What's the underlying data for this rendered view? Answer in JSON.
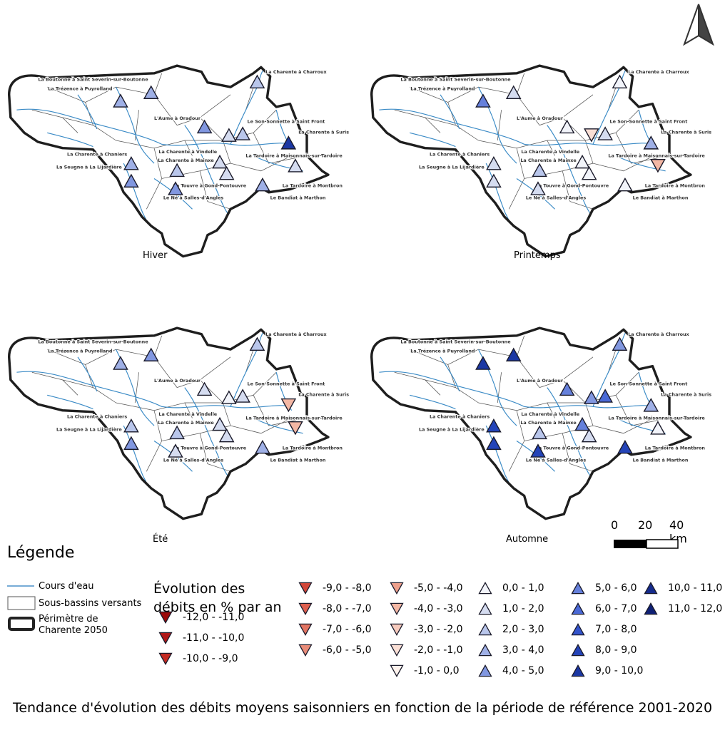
{
  "seasons": [
    "Hiver",
    "Printemps",
    "Été",
    "Automne"
  ],
  "stations": [
    "La Boutonne à Saint Severin-sur-Boutonne",
    "La Trézence à Puyrolland",
    "La Charente à Charroux",
    "L'Aume à Oradour",
    "Le Son-Sonnette à Saint Front",
    "La Charente à Suris",
    "La Charente à Chaniers",
    "La Charente à Vindelle",
    "La Tardoire à Maisonnais-sur-Tardoire",
    "La Charente à Mainxe",
    "La Seugne à La Lijardière",
    "La Touvre à Gond-Pontouvre",
    "La Tardoire à Montbron",
    "Le Né à Salles-d'Angles",
    "Le Bandiat à Marthon"
  ],
  "map_symbols": {
    "Hiver": [
      4,
      4,
      3,
      5,
      2,
      10,
      4,
      2,
      3,
      3,
      5,
      2,
      2,
      5,
      4
    ],
    "Printemps": [
      6,
      2,
      1,
      1,
      -1,
      4,
      2,
      1,
      2,
      3,
      2,
      1,
      -3,
      2,
      1
    ],
    "Été": [
      4,
      5,
      3,
      2,
      1,
      -3,
      3,
      2,
      2,
      3,
      5,
      2,
      -3,
      2,
      4
    ],
    "Automne": [
      10,
      10,
      5,
      6,
      5,
      4,
      9,
      6,
      7,
      3,
      9,
      2,
      1,
      9,
      9
    ]
  },
  "scale_bar": {
    "labels": [
      "0",
      "20",
      "40 km"
    ]
  },
  "legend": {
    "title": "Légende",
    "rivers": "Cours d'eau",
    "subbasins": "Sous-bassins versants",
    "perimeter": "Périmètre de\nCharente 2050",
    "evolution_title": "Évolution des débits en % par an",
    "classes": [
      {
        "label": "-12,0 - -11,0",
        "color": "#9b0a0a",
        "dir": "down"
      },
      {
        "label": "-11,0 - -10,0",
        "color": "#b01818",
        "dir": "down"
      },
      {
        "label": "-10,0 - -9,0",
        "color": "#c42a22",
        "dir": "down"
      },
      {
        "label": "-9,0 - -8,0",
        "color": "#d2473a",
        "dir": "down"
      },
      {
        "label": "-8,0 - -7,0",
        "color": "#dd5e4e",
        "dir": "down"
      },
      {
        "label": "-7,0 - -6,0",
        "color": "#e27462",
        "dir": "down"
      },
      {
        "label": "-6,0 - -5,0",
        "color": "#e88b78",
        "dir": "down"
      },
      {
        "label": "-5,0 - -4,0",
        "color": "#eea08c",
        "dir": "down"
      },
      {
        "label": "-4,0 - -3,0",
        "color": "#f3b7a4",
        "dir": "down"
      },
      {
        "label": "-3,0 - -2,0",
        "color": "#f7cbbd",
        "dir": "down"
      },
      {
        "label": "-2,0 - -1,0",
        "color": "#fadfd5",
        "dir": "down"
      },
      {
        "label": "-1,0 - 0,0",
        "color": "#fdf2ec",
        "dir": "down"
      },
      {
        "label": "0,0 - 1,0",
        "color": "#f2f4fa",
        "dir": "up"
      },
      {
        "label": "1,0 - 2,0",
        "color": "#d5dcf0",
        "dir": "up"
      },
      {
        "label": "2,0 - 3,0",
        "color": "#b9c6eb",
        "dir": "up"
      },
      {
        "label": "3,0 - 4,0",
        "color": "#9fb0e6",
        "dir": "up"
      },
      {
        "label": "4,0 - 5,0",
        "color": "#8197e0",
        "dir": "up"
      },
      {
        "label": "5,0 - 6,0",
        "color": "#6580db",
        "dir": "up"
      },
      {
        "label": "6,0 - 7,0",
        "color": "#4a69d6",
        "dir": "up"
      },
      {
        "label": "7,0 - 8,0",
        "color": "#3354cc",
        "dir": "up"
      },
      {
        "label": "8,0 - 9,0",
        "color": "#2444b8",
        "dir": "up"
      },
      {
        "label": "9,0 - 10,0",
        "color": "#1b37a3",
        "dir": "up"
      },
      {
        "label": "10,0 - 11,0",
        "color": "#152b8c",
        "dir": "up"
      },
      {
        "label": "11,0 - 12,0",
        "color": "#0f2075",
        "dir": "up"
      }
    ]
  },
  "caption": "Tendance d'évolution des débits moyens saisonniers en fonction de la période de référence 2001-2020"
}
